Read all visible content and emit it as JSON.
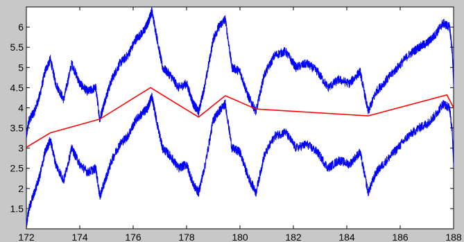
{
  "chart_data": {
    "type": "line",
    "title": "",
    "xlabel": "",
    "ylabel": "",
    "xlim": [
      172,
      188
    ],
    "ylim": [
      1,
      6.5
    ],
    "xticks": [
      172,
      174,
      176,
      178,
      180,
      182,
      184,
      186,
      188
    ],
    "yticks": [
      1.5,
      2,
      2.5,
      3,
      3.5,
      4,
      4.5,
      5,
      5.5,
      6
    ],
    "grid": false,
    "legend": "none",
    "series": [
      {
        "color": "#0000ff",
        "style": "noisy",
        "x": [
          172.0,
          172.1,
          172.3,
          172.5,
          172.7,
          172.9,
          173.1,
          173.4,
          173.7,
          174.0,
          174.3,
          174.6,
          174.75,
          174.95,
          175.2,
          175.5,
          175.8,
          176.1,
          176.4,
          176.55,
          176.7,
          176.9,
          177.1,
          177.4,
          177.7,
          178.0,
          178.25,
          178.45,
          178.7,
          179.0,
          179.2,
          179.45,
          179.7,
          180.0,
          180.3,
          180.6,
          180.9,
          181.3,
          181.7,
          182.1,
          182.5,
          182.9,
          183.3,
          183.7,
          184.1,
          184.5,
          184.8,
          185.1,
          185.5,
          185.9,
          186.3,
          186.7,
          187.0,
          187.3,
          187.6,
          187.85,
          187.95,
          188.0
        ],
        "y": [
          3.3,
          3.7,
          3.9,
          4.3,
          4.9,
          5.2,
          4.6,
          4.2,
          5.1,
          4.6,
          4.4,
          4.5,
          3.7,
          4.2,
          4.7,
          5.1,
          5.3,
          5.7,
          5.9,
          6.1,
          6.4,
          5.7,
          5.0,
          4.8,
          4.5,
          4.6,
          4.1,
          3.9,
          4.6,
          5.7,
          6.0,
          6.2,
          5.0,
          4.9,
          4.3,
          3.9,
          4.8,
          5.3,
          5.4,
          5.0,
          5.1,
          4.9,
          4.5,
          4.7,
          4.6,
          4.9,
          3.9,
          4.4,
          4.7,
          5.0,
          5.3,
          5.5,
          5.6,
          5.8,
          6.1,
          6.0,
          5.4,
          4.6
        ]
      },
      {
        "color": "#0000ff",
        "style": "noisy",
        "x": [
          172.0,
          172.1,
          172.3,
          172.5,
          172.7,
          172.9,
          173.1,
          173.4,
          173.7,
          174.0,
          174.3,
          174.6,
          174.75,
          174.95,
          175.2,
          175.5,
          175.8,
          176.1,
          176.4,
          176.55,
          176.7,
          176.9,
          177.1,
          177.4,
          177.7,
          178.0,
          178.25,
          178.45,
          178.7,
          179.0,
          179.2,
          179.45,
          179.7,
          180.0,
          180.3,
          180.6,
          180.9,
          181.3,
          181.7,
          182.1,
          182.5,
          182.9,
          183.3,
          183.7,
          184.1,
          184.5,
          184.8,
          185.1,
          185.5,
          185.9,
          186.3,
          186.7,
          187.0,
          187.3,
          187.6,
          187.85,
          187.95,
          188.0
        ],
        "y": [
          1.1,
          1.5,
          1.9,
          2.3,
          2.9,
          3.2,
          2.6,
          2.2,
          3.0,
          2.6,
          2.4,
          2.5,
          1.8,
          2.2,
          2.7,
          3.1,
          3.3,
          3.7,
          3.9,
          4.0,
          4.3,
          3.6,
          3.0,
          2.8,
          2.5,
          2.6,
          2.1,
          1.9,
          2.6,
          3.7,
          3.9,
          4.1,
          3.0,
          2.9,
          2.3,
          1.9,
          2.8,
          3.3,
          3.4,
          3.0,
          3.1,
          2.9,
          2.5,
          2.7,
          2.6,
          2.9,
          1.9,
          2.4,
          2.7,
          3.0,
          3.3,
          3.5,
          3.6,
          3.8,
          4.1,
          4.0,
          3.4,
          2.6
        ]
      },
      {
        "color": "#ff0000",
        "style": "line",
        "x": [
          172.0,
          172.9,
          174.75,
          176.65,
          178.45,
          179.45,
          180.6,
          184.8,
          187.75,
          188.0
        ],
        "y": [
          3.02,
          3.38,
          3.72,
          4.5,
          3.77,
          4.3,
          3.97,
          3.8,
          4.32,
          4.0
        ]
      }
    ]
  }
}
